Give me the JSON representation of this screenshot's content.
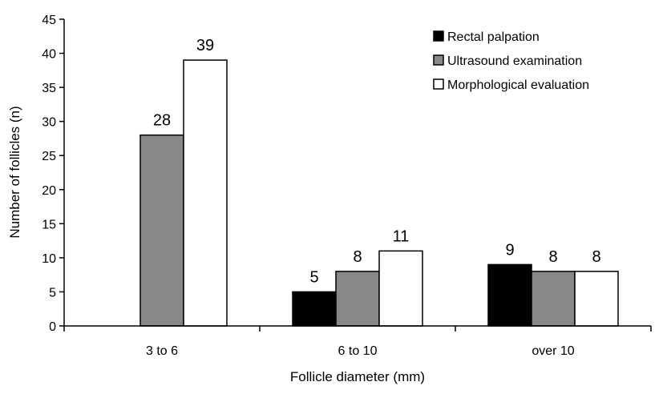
{
  "chart_data": {
    "type": "bar",
    "title": "",
    "xlabel": "Follicle diameter (mm)",
    "ylabel": "Number of follicles (n)",
    "categories": [
      "3 to 6",
      "6 to 10",
      "over 10"
    ],
    "series": [
      {
        "name": "Rectal palpation",
        "values": [
          0,
          5,
          9
        ],
        "color": "#000000",
        "labels": [
          "",
          "5",
          "9"
        ]
      },
      {
        "name": "Ultrasound examination",
        "values": [
          28,
          8,
          8
        ],
        "color": "#888888",
        "labels": [
          "28",
          "8",
          "8"
        ]
      },
      {
        "name": "Morphological evaluation",
        "values": [
          39,
          11,
          8
        ],
        "color": "#ffffff",
        "labels": [
          "39",
          "11",
          "8"
        ]
      }
    ],
    "ylim": [
      0,
      45
    ],
    "yticks": [
      0,
      5,
      10,
      15,
      20,
      25,
      30,
      35,
      40,
      45
    ],
    "grid": false,
    "legend_position": "top-right"
  }
}
